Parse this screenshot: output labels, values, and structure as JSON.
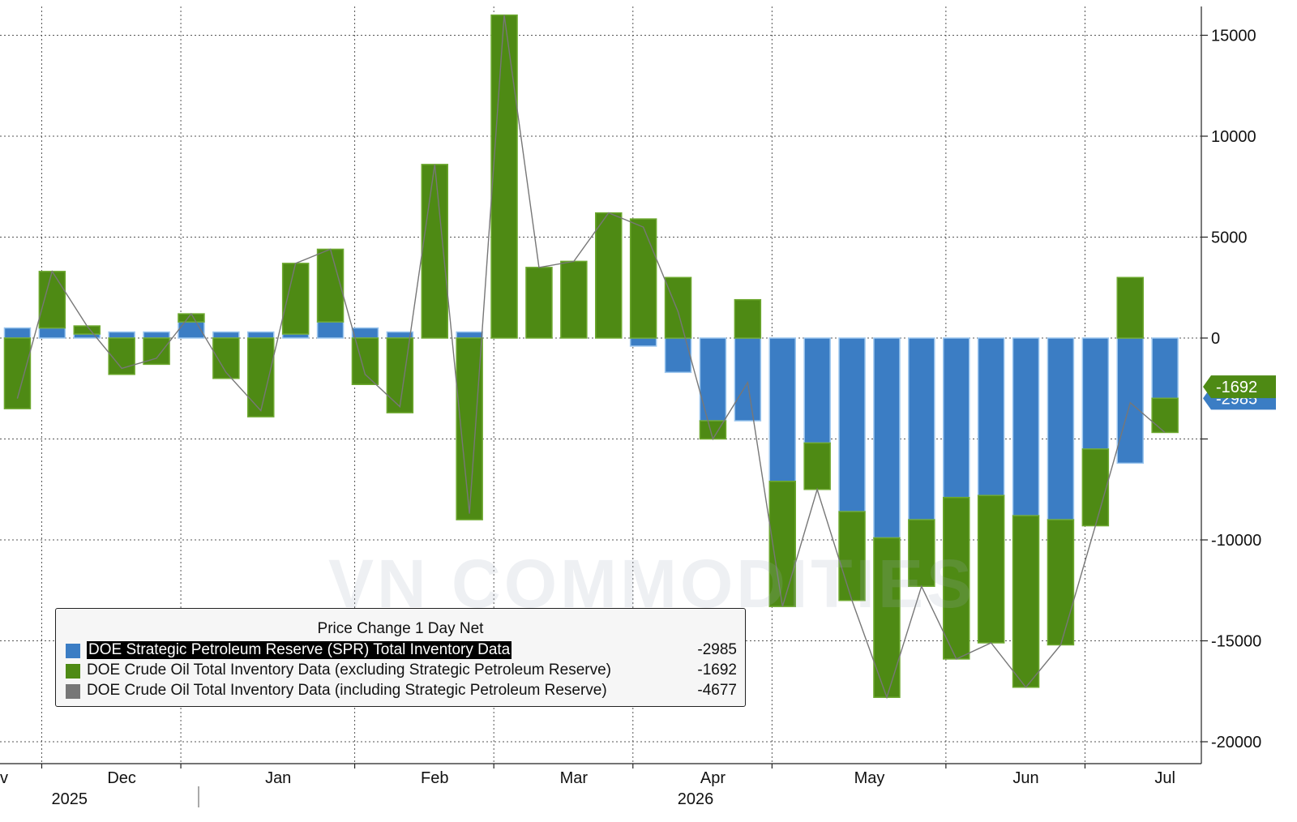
{
  "chart_data": {
    "type": "bar",
    "stacked": true,
    "xlabel": "",
    "ylabel": "",
    "ylim": [
      -21000,
      16000
    ],
    "yticks": [
      15000,
      10000,
      5000,
      0,
      -5000,
      -10000,
      -15000,
      -20000
    ],
    "ytick_labels": [
      "15000",
      "10000",
      "5000",
      "0",
      "",
      "-10000",
      "-15000",
      "-20000"
    ],
    "y_axis_position": "right",
    "grid": true,
    "x_month_labels": [
      {
        "label": "v",
        "week": 0
      },
      {
        "label": "Dec",
        "week": 3.5
      },
      {
        "label": "Jan",
        "week": 8
      },
      {
        "label": "Feb",
        "week": 12.5
      },
      {
        "label": "Mar",
        "week": 16.5
      },
      {
        "label": "Apr",
        "week": 20.5
      },
      {
        "label": "May",
        "week": 25
      },
      {
        "label": "Jun",
        "week": 29.5
      },
      {
        "label": "Jul",
        "week": 33.5
      }
    ],
    "x_year_labels": [
      {
        "label": "2025",
        "week": 2
      },
      {
        "label": "2026",
        "week": 20
      }
    ],
    "x_gridline_weeks": [
      1.2,
      5.2,
      10.2,
      14.2,
      18.2,
      22.2,
      27.2,
      31.2
    ],
    "weeks": 35,
    "series": [
      {
        "name": "DOE Strategic Petroleum Reserve (SPR) Total Inventory Data",
        "color": "#3b7dc4",
        "values": [
          500,
          500,
          200,
          300,
          300,
          800,
          300,
          300,
          200,
          800,
          500,
          300,
          0,
          300,
          0,
          0,
          0,
          0,
          -400,
          -1700,
          -4100,
          -4100,
          -7100,
          -5200,
          -8600,
          -9900,
          -9000,
          -7900,
          -7800,
          -8800,
          -9000,
          -5500,
          -6200,
          -2985
        ]
      },
      {
        "name": "DOE Crude Oil Total Inventory Data (excluding Strategic Petroleum Reserve)",
        "color": "#4e8a14",
        "values": [
          -3500,
          2800,
          400,
          -1800,
          -1300,
          400,
          -2000,
          -3900,
          3500,
          3600,
          -2300,
          -3700,
          8600,
          -9000,
          16000,
          3500,
          3800,
          6200,
          5900,
          3000,
          -900,
          1900,
          -6200,
          -2300,
          -4400,
          -7900,
          -3300,
          -8000,
          -7300,
          -8500,
          -6200,
          -3800,
          3000,
          -1692
        ]
      }
    ],
    "total_series": {
      "name": "DOE Crude Oil Total Inventory Data (including Strategic Petroleum Reserve)",
      "color": "#777777",
      "values": [
        -3000,
        3300,
        600,
        -1500,
        -1000,
        1200,
        -1700,
        -3600,
        3700,
        4400,
        -1800,
        -3400,
        8600,
        -8700,
        16000,
        3500,
        3800,
        6200,
        5500,
        1300,
        -5000,
        -2200,
        -13300,
        -7500,
        -13000,
        -17800,
        -12300,
        -15900,
        -15100,
        -17300,
        -15200,
        -9300,
        -3200,
        -4677
      ]
    },
    "legend": {
      "title": "Price Change 1 Day Net",
      "placement": "bottom-left",
      "entries": [
        {
          "label": "DOE Strategic Petroleum Reserve (SPR) Total Inventory Data",
          "value": "-2985",
          "color": "#3b7dc4",
          "highlight": true
        },
        {
          "label": "DOE Crude Oil Total Inventory Data (excluding Strategic Petroleum Reserve)",
          "value": "-1692",
          "color": "#4e8a14",
          "highlight": false
        },
        {
          "label": "DOE Crude Oil Total Inventory Data (including Strategic Petroleum Reserve)",
          "value": "-4677",
          "color": "#777777",
          "highlight": false
        }
      ]
    },
    "value_tags": [
      {
        "text": "-2985",
        "value": -2985,
        "color": "#3b7dc4"
      },
      {
        "text": "-1692",
        "value": -1692,
        "color": "#4e8a14"
      }
    ]
  },
  "watermark": "VN COMMODITIES"
}
